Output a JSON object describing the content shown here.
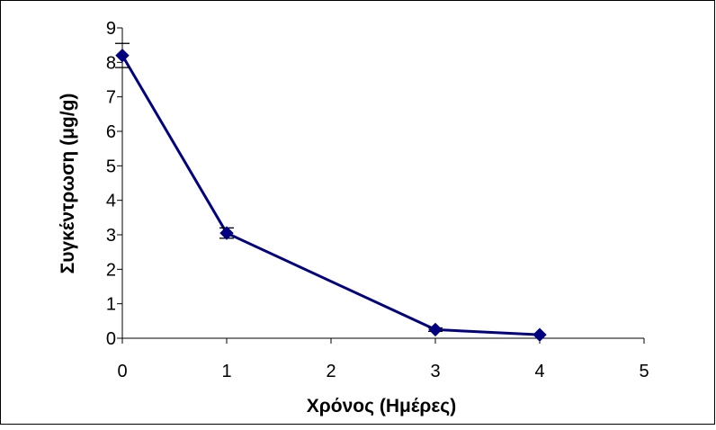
{
  "chart_data": {
    "type": "line",
    "x_values": [
      0,
      1,
      3,
      4
    ],
    "y_values": [
      8.2,
      3.05,
      0.25,
      0.1
    ],
    "error_bars": [
      {
        "x": 0,
        "low": 7.85,
        "high": 8.55
      },
      {
        "x": 1,
        "low": 2.9,
        "high": 3.2
      },
      {
        "x": 3,
        "low": 0.2,
        "high": 0.3
      },
      {
        "x": 4,
        "low": 0.08,
        "high": 0.12
      }
    ],
    "xlabel": "Χρόνος (Ημέρες)",
    "ylabel": "Συγκέντρωση (μg/g)",
    "xlim": [
      0,
      5
    ],
    "ylim": [
      0,
      9
    ],
    "x_ticks": [
      "0",
      "1",
      "2",
      "3",
      "4",
      "5"
    ],
    "y_ticks": [
      "0",
      "1",
      "2",
      "3",
      "4",
      "5",
      "6",
      "7",
      "8",
      "9"
    ],
    "grid": false,
    "legend": "none",
    "marker": "diamond",
    "colors": {
      "series": "#000080",
      "axis": "#000000",
      "frame": "#000000",
      "background": "#ffffff"
    }
  }
}
